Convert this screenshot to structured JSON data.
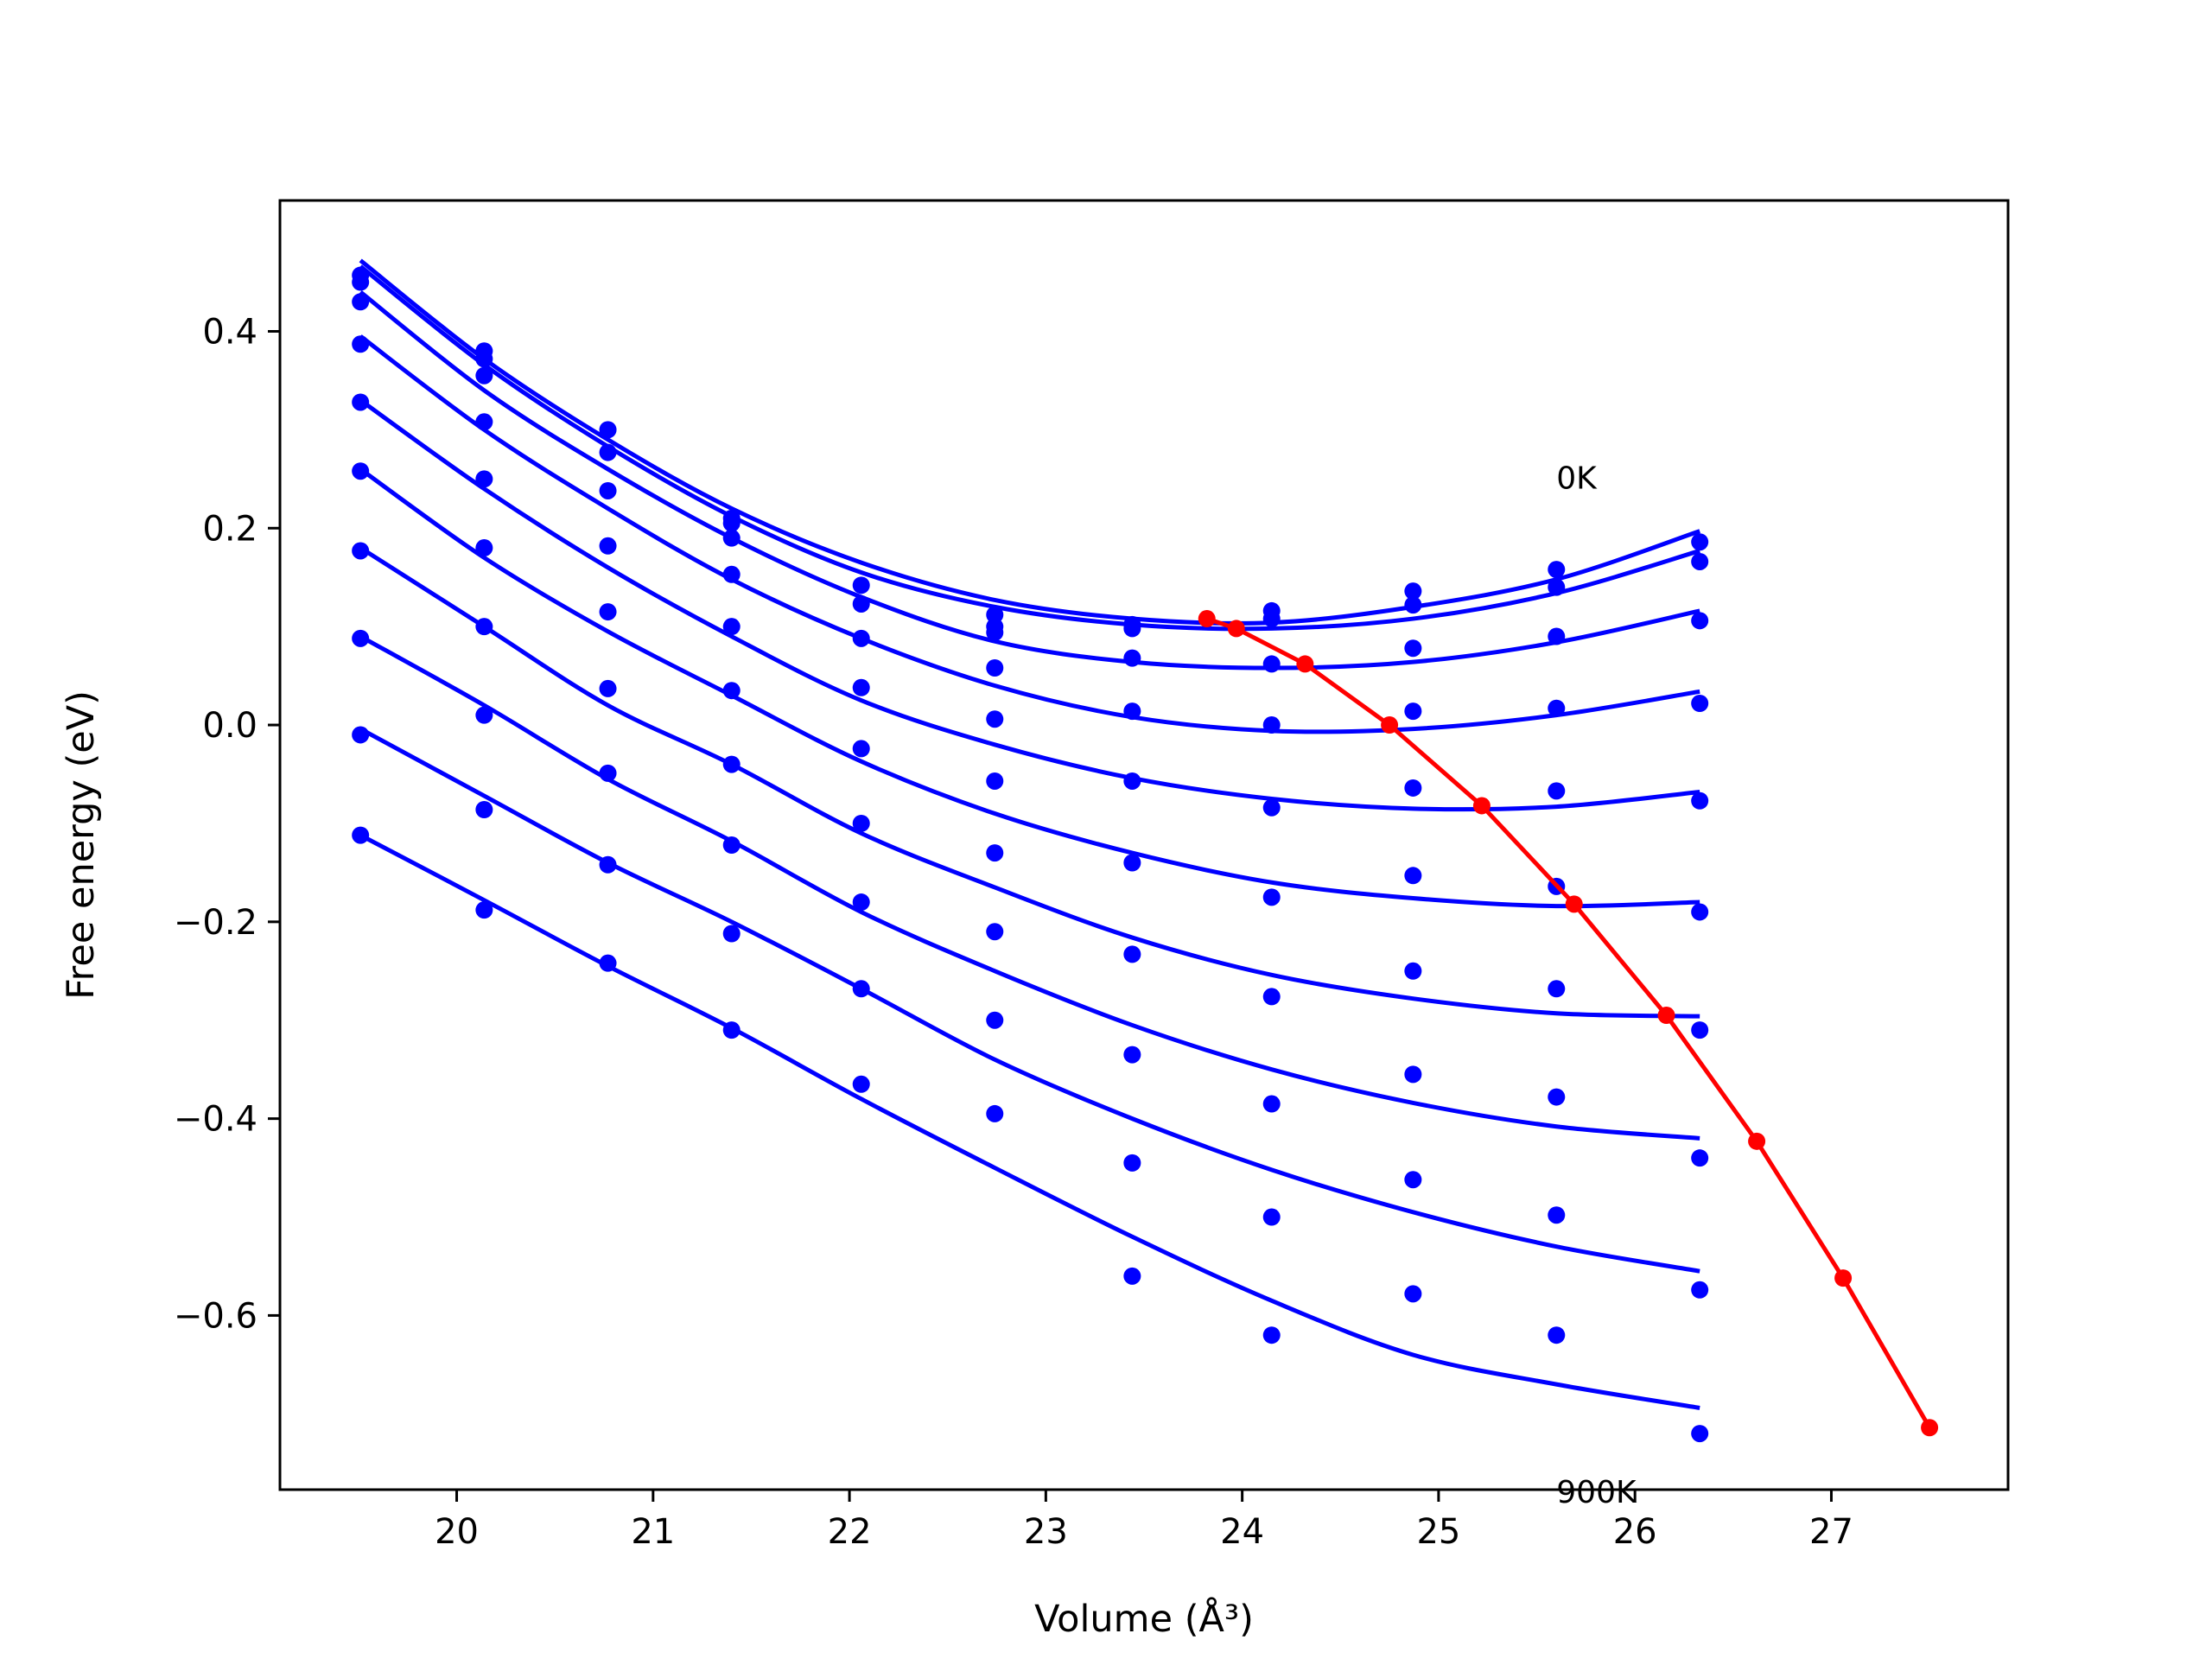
{
  "chart_data": {
    "type": "line",
    "title": "",
    "xlabel": "Volume (Å³)",
    "ylabel": "Free energy (eV)",
    "xlim": [
      19.1,
      27.9
    ],
    "ylim": [
      -0.777,
      0.533
    ],
    "xticks": [
      20,
      21,
      22,
      23,
      24,
      25,
      26,
      27
    ],
    "yticks": [
      -0.6,
      -0.4,
      -0.2,
      0.0,
      0.2,
      0.4
    ],
    "ytick_labels": [
      "−0.6",
      "−0.4",
      "−0.2",
      "0.0",
      "0.2",
      "0.4"
    ],
    "grid": false,
    "annotations": [
      {
        "text": "0K",
        "x": 25.6,
        "y": 0.24
      },
      {
        "text": "900K",
        "x": 25.6,
        "y": -0.79
      }
    ],
    "x": [
      19.51,
      20.14,
      20.77,
      21.4,
      22.06,
      22.74,
      23.44,
      24.15,
      24.87,
      25.6,
      26.33
    ],
    "series": [
      {
        "color": "#0000ff",
        "points": [
          0.457,
          0.38,
          0.3,
          0.21,
          0.142,
          0.112,
          0.102,
          0.116,
          0.136,
          0.158,
          0.186
        ],
        "fit": [
          0.472,
          0.372,
          0.29,
          0.22,
          0.165,
          0.127,
          0.108,
          0.104,
          0.12,
          0.148,
          0.197
        ]
      },
      {
        "color": "#0000ff",
        "points": [
          0.45,
          0.372,
          0.277,
          0.205,
          0.123,
          0.1,
          0.098,
          0.108,
          0.122,
          0.14,
          0.166
        ],
        "fit": [
          0.466,
          0.366,
          0.283,
          0.212,
          0.155,
          0.12,
          0.102,
          0.098,
          0.108,
          0.134,
          0.177
        ]
      },
      {
        "color": "#0000ff",
        "points": [
          0.43,
          0.355,
          0.238,
          0.19,
          0.088,
          0.094,
          0.068,
          0.062,
          0.078,
          0.09,
          0.106
        ],
        "fit": [
          0.44,
          0.34,
          0.26,
          0.19,
          0.13,
          0.085,
          0.064,
          0.058,
          0.064,
          0.084,
          0.116
        ]
      },
      {
        "color": "#0000ff",
        "points": [
          0.387,
          0.308,
          0.182,
          0.153,
          0.038,
          0.058,
          0.014,
          0.0,
          0.014,
          0.017,
          0.022
        ],
        "fit": [
          0.395,
          0.3,
          0.22,
          0.148,
          0.088,
          0.04,
          0.008,
          -0.006,
          -0.004,
          0.01,
          0.034
        ]
      },
      {
        "color": "#0000ff",
        "points": [
          0.328,
          0.25,
          0.115,
          0.1,
          -0.024,
          0.006,
          -0.057,
          -0.084,
          -0.064,
          -0.067,
          -0.077
        ],
        "fit": [
          0.33,
          0.24,
          0.16,
          0.09,
          0.025,
          -0.02,
          -0.054,
          -0.075,
          -0.085,
          -0.083,
          -0.068
        ]
      },
      {
        "color": "#0000ff",
        "points": [
          0.258,
          0.18,
          0.037,
          0.035,
          -0.1,
          -0.057,
          -0.14,
          -0.175,
          -0.153,
          -0.164,
          -0.19
        ],
        "fit": [
          0.26,
          0.17,
          0.095,
          0.03,
          -0.037,
          -0.09,
          -0.13,
          -0.16,
          -0.176,
          -0.184,
          -0.18
        ]
      },
      {
        "color": "#0000ff",
        "points": [
          0.177,
          0.1,
          -0.049,
          -0.04,
          -0.18,
          -0.13,
          -0.233,
          -0.276,
          -0.25,
          -0.268,
          -0.31
        ],
        "fit": [
          0.18,
          0.1,
          0.02,
          -0.04,
          -0.11,
          -0.165,
          -0.216,
          -0.254,
          -0.278,
          -0.293,
          -0.296
        ]
      },
      {
        "color": "#0000ff",
        "points": [
          0.088,
          0.01,
          -0.142,
          -0.122,
          -0.268,
          -0.21,
          -0.335,
          -0.385,
          -0.355,
          -0.378,
          -0.44
        ],
        "fit": [
          0.09,
          0.02,
          -0.055,
          -0.118,
          -0.19,
          -0.25,
          -0.305,
          -0.35,
          -0.384,
          -0.408,
          -0.42
        ]
      },
      {
        "color": "#0000ff",
        "points": [
          -0.01,
          -0.086,
          -0.242,
          -0.212,
          -0.365,
          -0.3,
          -0.445,
          -0.5,
          -0.462,
          -0.498,
          -0.574
        ],
        "fit": [
          -0.004,
          -0.072,
          -0.14,
          -0.2,
          -0.268,
          -0.34,
          -0.4,
          -0.452,
          -0.495,
          -0.53,
          -0.555
        ]
      },
      {
        "color": "#0000ff",
        "points": [
          -0.112,
          -0.188,
          null,
          -0.31,
          null,
          -0.395,
          -0.56,
          -0.62,
          -0.578,
          -0.62,
          -0.72
        ],
        "fit": [
          -0.112,
          -0.178,
          -0.245,
          -0.308,
          -0.38,
          -0.45,
          -0.52,
          -0.585,
          -0.64,
          -0.67,
          -0.694
        ]
      }
    ],
    "minimum_series": {
      "color": "#ff0000",
      "x": [
        23.82,
        23.97,
        24.32,
        24.75,
        25.22,
        25.69,
        26.16,
        26.62,
        27.06,
        27.5
      ],
      "y": [
        0.108,
        0.098,
        0.062,
        0.0,
        -0.082,
        -0.182,
        -0.295,
        -0.423,
        -0.562,
        -0.714
      ]
    }
  }
}
